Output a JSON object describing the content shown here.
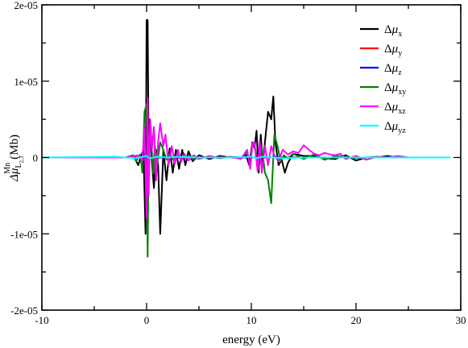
{
  "chart_data": {
    "type": "line",
    "title": "",
    "xlabel": "energy (eV)",
    "ylabel": {
      "prefix": "Δμ",
      "sup": "Mn",
      "sub": "L",
      "subsub": "2,3",
      "unit": "(Mb)"
    },
    "xlim": [
      -10,
      30
    ],
    "ylim": [
      -2e-05,
      2e-05
    ],
    "x_ticks": [
      -10,
      0,
      10,
      20,
      30
    ],
    "x_tick_labels": [
      "-10",
      "0",
      "10",
      "20",
      "30"
    ],
    "y_ticks": [
      -2e-05,
      -1e-05,
      0,
      1e-05,
      2e-05
    ],
    "y_tick_labels": [
      "-2e-05",
      "-1e-05",
      "0",
      "1e-05",
      "2e-05"
    ],
    "grid": false,
    "legend_position": "top-right",
    "series": [
      {
        "name": "Δμx",
        "label_main": "Δμ",
        "label_sub": "x",
        "color": "#000000",
        "x": [
          -10,
          -2,
          -1.2,
          -0.8,
          -0.5,
          -0.3,
          -0.1,
          0,
          0.1,
          0.2,
          0.3,
          0.5,
          0.7,
          0.9,
          1.1,
          1.3,
          1.6,
          1.9,
          2.2,
          2.5,
          2.8,
          3.1,
          3.4,
          3.7,
          4.0,
          4.4,
          5,
          6,
          7,
          8,
          9,
          9.5,
          9.8,
          10.1,
          10.3,
          10.5,
          10.7,
          10.9,
          11.1,
          11.3,
          11.6,
          11.9,
          12.1,
          12.3,
          12.6,
          12.9,
          13.2,
          13.5,
          14,
          15,
          16,
          17,
          18,
          19,
          20,
          21,
          22,
          23,
          24,
          25,
          26,
          27,
          28,
          29
        ],
        "y": [
          0,
          0,
          1e-07,
          -1e-06,
          3e-07,
          1e-06,
          -1e-05,
          1.8e-05,
          1.8e-05,
          -1e-06,
          5e-06,
          -5e-07,
          -4e-06,
          1e-06,
          -1e-06,
          -1e-05,
          1e-06,
          -3e-06,
          1.2e-06,
          -2e-06,
          1e-06,
          -1.5e-06,
          1e-06,
          -1e-06,
          8e-07,
          -5e-07,
          3e-07,
          -2e-07,
          2e-07,
          0,
          -1e-07,
          3e-07,
          -1e-06,
          2e-06,
          1.2e-06,
          3.5e-06,
          -2e-06,
          3e-06,
          -1e-06,
          2e-06,
          6e-06,
          5e-06,
          8e-06,
          2e-06,
          -1e-06,
          -3e-07,
          -2e-06,
          -7e-07,
          5e-07,
          2e-07,
          2e-07,
          -1e-07,
          -2e-07,
          3e-07,
          -4e-07,
          0,
          0,
          2e-07,
          0,
          0,
          0,
          0,
          0,
          0
        ]
      },
      {
        "name": "Δμy",
        "label_main": "Δμ",
        "label_sub": "y",
        "color": "#ff0000",
        "x": [
          -10,
          29
        ],
        "y": [
          0,
          0
        ]
      },
      {
        "name": "Δμz",
        "label_main": "Δμ",
        "label_sub": "z",
        "color": "#0000ff",
        "x": [
          -10,
          29
        ],
        "y": [
          0,
          0
        ]
      },
      {
        "name": "Δμxy",
        "label_main": "Δμ",
        "label_sub": "xy",
        "color": "#008000",
        "x": [
          -10,
          -2,
          -1.3,
          -1,
          -0.6,
          -0.4,
          -0.2,
          0,
          0.1,
          0.2,
          0.4,
          0.6,
          0.8,
          1.0,
          1.3,
          1.6,
          1.9,
          2.2,
          2.6,
          3,
          3.4,
          3.8,
          4.2,
          4.6,
          5,
          6,
          7,
          8,
          9,
          9.6,
          9.9,
          10.1,
          10.4,
          10.7,
          11,
          11.3,
          11.6,
          11.9,
          12.2,
          12.5,
          12.8,
          13.1,
          13.5,
          14,
          15,
          16,
          17,
          18,
          19,
          20,
          21,
          22,
          23,
          24,
          25,
          26,
          27,
          28,
          29
        ],
        "y": [
          0,
          0,
          3e-07,
          -5e-07,
          4e-07,
          -2e-06,
          6e-06,
          7e-06,
          -1.3e-05,
          2e-06,
          4e-06,
          -2e-06,
          1.5e-06,
          -1e-06,
          2e-06,
          1e-06,
          -3e-07,
          5e-07,
          -4e-07,
          3e-07,
          -2e-07,
          2e-07,
          1e-07,
          -2e-07,
          0,
          1e-07,
          -1e-07,
          1e-07,
          0,
          6e-07,
          -1e-06,
          2e-06,
          1e-06,
          -1.5e-06,
          1.5e-06,
          -2e-06,
          -3e-06,
          -6e-06,
          3e-06,
          1.5e-06,
          -5e-07,
          3e-07,
          -1e-07,
          5e-07,
          -2e-07,
          4e-07,
          -3e-07,
          2e-07,
          1e-07,
          -1e-07,
          0,
          1e-07,
          0,
          0,
          0,
          0,
          0,
          0,
          0
        ]
      },
      {
        "name": "Δμxz",
        "label_main": "Δμ",
        "label_sub": "xz",
        "color": "#ff00ff",
        "x": [
          -10,
          -2,
          -0.8,
          -0.4,
          -0.2,
          0,
          0.1,
          0.2,
          0.35,
          0.5,
          0.7,
          0.9,
          1.1,
          1.3,
          1.6,
          1.8,
          2.1,
          2.4,
          2.7,
          3,
          3.3,
          3.6,
          4,
          4.5,
          5,
          6,
          7,
          8,
          9,
          9.6,
          9.9,
          10.1,
          10.3,
          10.6,
          10.8,
          11,
          11.3,
          11.6,
          11.9,
          12.2,
          12.6,
          13,
          13.5,
          14,
          14.5,
          15,
          15.5,
          16,
          16.5,
          17,
          17.5,
          18,
          18.5,
          19,
          20,
          21,
          22,
          23,
          24,
          25,
          26,
          27,
          28,
          29
        ],
        "y": [
          0,
          0,
          3e-07,
          -4e-07,
          4e-06,
          -8e-06,
          7.8e-06,
          -5e-06,
          5e-06,
          1e-06,
          4e-06,
          -3e-06,
          2e-06,
          4.5e-06,
          1.5e-06,
          3e-06,
          -1e-06,
          1.5e-06,
          -8e-07,
          1e-06,
          -6e-07,
          5e-07,
          -4e-07,
          3e-07,
          -2e-07,
          2e-07,
          -1e-07,
          1e-07,
          -2e-07,
          1e-06,
          -1.5e-06,
          1.8e-06,
          2e-06,
          -1.8e-06,
          2.2e-06,
          -2e-06,
          1.5e-06,
          -1e-06,
          1.5e-06,
          3e-07,
          -5e-07,
          1e-06,
          4e-07,
          8e-07,
          6e-07,
          1.6e-06,
          1e-06,
          5e-07,
          3e-07,
          6e-07,
          4e-07,
          3e-07,
          5e-07,
          -2e-07,
          2e-07,
          -3e-07,
          1e-07,
          0,
          2e-07,
          0,
          0,
          0,
          0,
          0
        ]
      },
      {
        "name": "Δμyz",
        "label_main": "Δμ",
        "label_sub": "yz",
        "color": "#00ffff",
        "x": [
          -10,
          -3,
          -1,
          0,
          0.3,
          1,
          2,
          3,
          5,
          8,
          10,
          10.5,
          11,
          12,
          13,
          15,
          20,
          25,
          29
        ],
        "y": [
          0,
          1e-07,
          -1e-07,
          2e-07,
          -1e-07,
          1e-07,
          0,
          1e-07,
          0,
          0,
          1e-07,
          -1e-07,
          1e-07,
          0,
          -1e-07,
          0,
          0,
          0,
          0
        ]
      }
    ]
  }
}
